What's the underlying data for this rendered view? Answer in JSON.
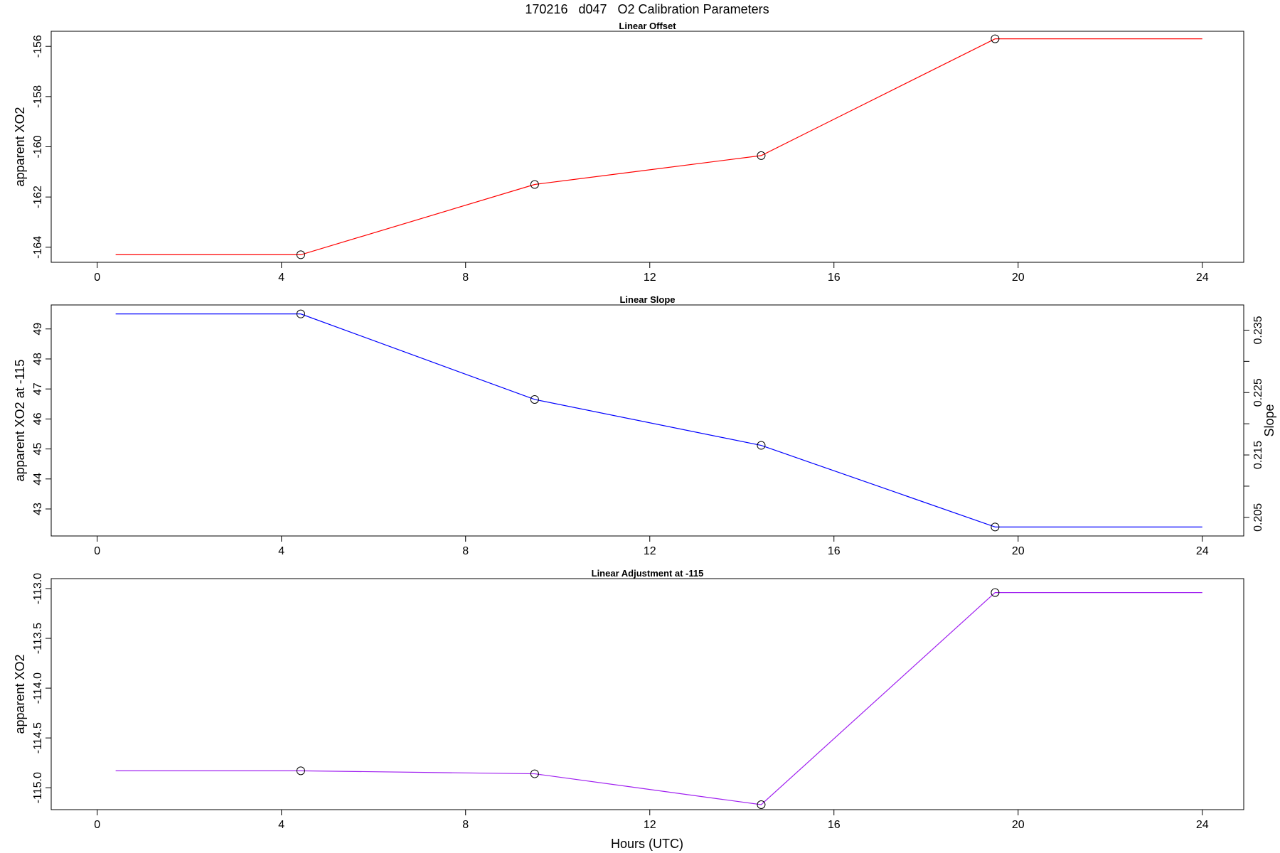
{
  "figure": {
    "title": "170216   d047   O2 Calibration Parameters",
    "xlabel": "Hours (UTC)"
  },
  "chart_data": [
    {
      "type": "line",
      "title": "Linear Offset",
      "xlabel": "",
      "ylabel": "apparent XO2",
      "color": "#ff0000",
      "xlim": [
        -1,
        24.9
      ],
      "ylim": [
        -164.6,
        -155.4
      ],
      "xticks": [
        0,
        4,
        8,
        12,
        16,
        20,
        24
      ],
      "yticks": [
        -164,
        -162,
        -160,
        -158,
        -156
      ],
      "ytick_labels": [
        "-164",
        "-162",
        "-160",
        "-158",
        "-156"
      ],
      "line": {
        "x": [
          0.4,
          4.42,
          9.5,
          14.42,
          19.5,
          24
        ],
        "y": [
          -164.3,
          -164.3,
          -161.5,
          -160.35,
          -155.7,
          -155.7
        ]
      },
      "points": {
        "x": [
          4.42,
          9.5,
          14.42,
          19.5
        ],
        "y": [
          -164.3,
          -161.5,
          -160.35,
          -155.7
        ]
      }
    },
    {
      "type": "line",
      "title": "Linear Slope",
      "xlabel": "",
      "ylabel": "apparent XO2 at -115",
      "ylabel_right": "Slope",
      "color": "#0000ff",
      "xlim": [
        -1,
        24.9
      ],
      "ylim": [
        42.1,
        49.8
      ],
      "xticks": [
        0,
        4,
        8,
        12,
        16,
        20,
        24
      ],
      "yticks": [
        43,
        44,
        45,
        46,
        47,
        48,
        49
      ],
      "ytick_labels": [
        "43",
        "44",
        "45",
        "46",
        "47",
        "48",
        "49"
      ],
      "yticks_right": [
        42.72,
        43.76,
        44.8,
        45.84,
        46.88,
        47.92,
        48.96
      ],
      "ytick_labels_right": [
        "0.205",
        "",
        "0.215",
        "",
        "0.225",
        "",
        "0.235"
      ],
      "line": {
        "x": [
          0.4,
          4.42,
          9.5,
          14.42,
          19.5,
          24
        ],
        "y": [
          49.5,
          49.5,
          46.65,
          45.12,
          42.4,
          42.4
        ]
      },
      "points": {
        "x": [
          4.42,
          9.5,
          14.42,
          19.5
        ],
        "y": [
          49.5,
          46.65,
          45.12,
          42.4
        ]
      }
    },
    {
      "type": "line",
      "title": "Linear Adjustment at -115",
      "xlabel": "Hours (UTC)",
      "ylabel": "apparent XO2",
      "color": "#a020f0",
      "xlim": [
        -1,
        24.9
      ],
      "ylim": [
        -115.22,
        -112.9
      ],
      "xticks": [
        0,
        4,
        8,
        12,
        16,
        20,
        24
      ],
      "yticks": [
        -115.0,
        -114.5,
        -114.0,
        -113.5,
        -113.0
      ],
      "ytick_labels": [
        "-115.0",
        "-114.5",
        "-114.0",
        "-113.5",
        "-113.0"
      ],
      "line": {
        "x": [
          0.4,
          4.42,
          9.5,
          14.42,
          19.5,
          24
        ],
        "y": [
          -114.83,
          -114.83,
          -114.86,
          -115.17,
          -113.04,
          -113.04
        ]
      },
      "points": {
        "x": [
          4.42,
          9.5,
          14.42,
          19.5
        ],
        "y": [
          -114.83,
          -114.86,
          -115.17,
          -113.04
        ]
      }
    }
  ]
}
